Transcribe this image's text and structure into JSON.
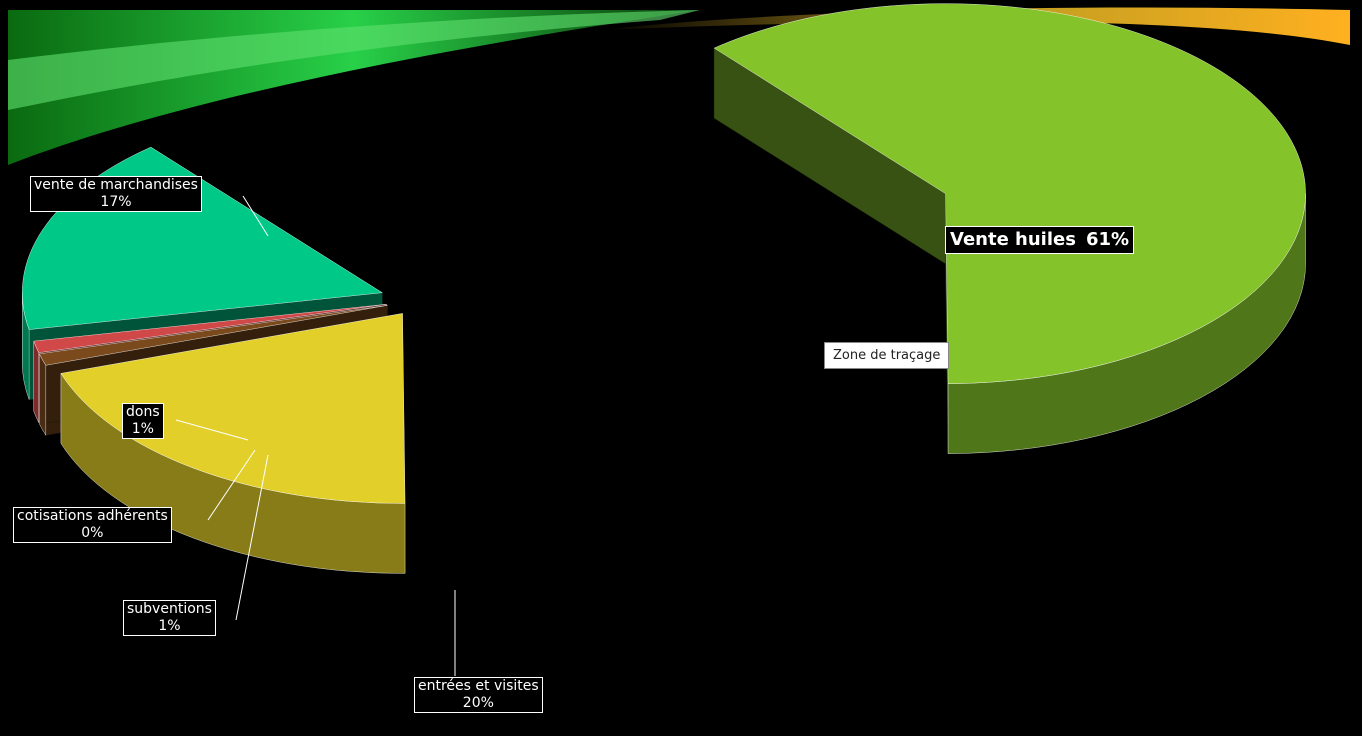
{
  "chart_data": {
    "type": "pie",
    "categories": [
      "Vente huiles",
      "entrées et visites",
      "subventions",
      "cotisations adhérents",
      "dons",
      "vente de marchandises"
    ],
    "values": [
      61,
      20,
      1,
      0,
      1,
      17
    ],
    "value_labels": [
      "61%",
      "20%",
      "1%",
      "0%",
      "1%",
      "17%"
    ],
    "colors": [
      "#84c42a",
      "#e2cf2a",
      "#7a4a1c",
      "#e0902e",
      "#d04848",
      "#00c987"
    ],
    "tooltip": "Zone de traçage"
  }
}
